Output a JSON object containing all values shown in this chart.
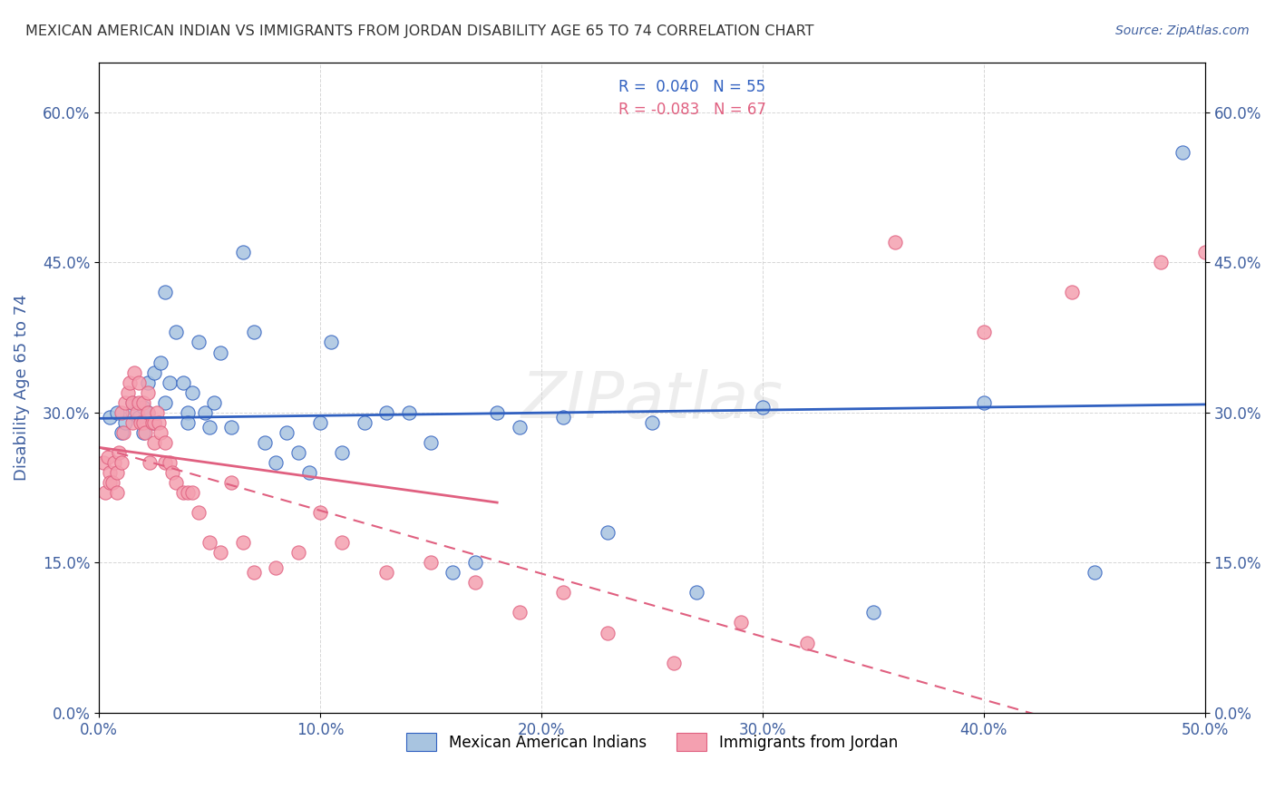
{
  "title": "MEXICAN AMERICAN INDIAN VS IMMIGRANTS FROM JORDAN DISABILITY AGE 65 TO 74 CORRELATION CHART",
  "source": "Source: ZipAtlas.com",
  "xlabel_bottom": "",
  "ylabel": "Disability Age 65 to 74",
  "xlim": [
    0.0,
    0.5
  ],
  "ylim": [
    0.0,
    0.65
  ],
  "xticks": [
    0.0,
    0.1,
    0.2,
    0.3,
    0.4,
    0.5
  ],
  "yticks": [
    0.0,
    0.15,
    0.3,
    0.45,
    0.6
  ],
  "xticklabels": [
    "0.0%",
    "10.0%",
    "20.0%",
    "30.0%",
    "40.0%",
    "50.0%"
  ],
  "yticklabels": [
    "0.0%",
    "15.0%",
    "30.0%",
    "45.0%",
    "60.0%"
  ],
  "blue_color": "#a8c4e0",
  "pink_color": "#f4a0b0",
  "blue_line_color": "#3060c0",
  "pink_line_color": "#e06080",
  "legend_blue_label": "Mexican American Indians",
  "legend_pink_label": "Immigrants from Jordan",
  "R_blue": 0.04,
  "N_blue": 55,
  "R_pink": -0.083,
  "N_pink": 67,
  "watermark": "ZIPatlas",
  "blue_scatter_x": [
    0.005,
    0.008,
    0.01,
    0.012,
    0.015,
    0.015,
    0.018,
    0.02,
    0.02,
    0.022,
    0.022,
    0.025,
    0.025,
    0.028,
    0.03,
    0.03,
    0.032,
    0.035,
    0.038,
    0.04,
    0.04,
    0.042,
    0.045,
    0.048,
    0.05,
    0.052,
    0.055,
    0.06,
    0.065,
    0.07,
    0.075,
    0.08,
    0.085,
    0.09,
    0.095,
    0.1,
    0.105,
    0.11,
    0.12,
    0.13,
    0.14,
    0.15,
    0.16,
    0.17,
    0.18,
    0.19,
    0.21,
    0.23,
    0.25,
    0.27,
    0.3,
    0.35,
    0.4,
    0.45,
    0.49
  ],
  "blue_scatter_y": [
    0.295,
    0.3,
    0.28,
    0.29,
    0.3,
    0.31,
    0.295,
    0.305,
    0.28,
    0.33,
    0.3,
    0.34,
    0.29,
    0.35,
    0.31,
    0.42,
    0.33,
    0.38,
    0.33,
    0.3,
    0.29,
    0.32,
    0.37,
    0.3,
    0.285,
    0.31,
    0.36,
    0.285,
    0.46,
    0.38,
    0.27,
    0.25,
    0.28,
    0.26,
    0.24,
    0.29,
    0.37,
    0.26,
    0.29,
    0.3,
    0.3,
    0.27,
    0.14,
    0.15,
    0.3,
    0.285,
    0.295,
    0.18,
    0.29,
    0.12,
    0.305,
    0.1,
    0.31,
    0.14,
    0.56
  ],
  "pink_scatter_x": [
    0.002,
    0.003,
    0.004,
    0.005,
    0.005,
    0.006,
    0.007,
    0.008,
    0.008,
    0.009,
    0.01,
    0.01,
    0.011,
    0.012,
    0.013,
    0.014,
    0.015,
    0.015,
    0.016,
    0.017,
    0.018,
    0.018,
    0.019,
    0.02,
    0.02,
    0.021,
    0.022,
    0.022,
    0.023,
    0.024,
    0.025,
    0.025,
    0.026,
    0.027,
    0.028,
    0.03,
    0.03,
    0.032,
    0.033,
    0.035,
    0.038,
    0.04,
    0.042,
    0.045,
    0.05,
    0.055,
    0.06,
    0.065,
    0.07,
    0.08,
    0.09,
    0.1,
    0.11,
    0.13,
    0.15,
    0.17,
    0.19,
    0.21,
    0.23,
    0.26,
    0.29,
    0.32,
    0.36,
    0.4,
    0.44,
    0.48,
    0.5
  ],
  "pink_scatter_y": [
    0.25,
    0.22,
    0.255,
    0.24,
    0.23,
    0.23,
    0.25,
    0.24,
    0.22,
    0.26,
    0.25,
    0.3,
    0.28,
    0.31,
    0.32,
    0.33,
    0.29,
    0.31,
    0.34,
    0.3,
    0.31,
    0.33,
    0.29,
    0.29,
    0.31,
    0.28,
    0.3,
    0.32,
    0.25,
    0.29,
    0.27,
    0.29,
    0.3,
    0.29,
    0.28,
    0.27,
    0.25,
    0.25,
    0.24,
    0.23,
    0.22,
    0.22,
    0.22,
    0.2,
    0.17,
    0.16,
    0.23,
    0.17,
    0.14,
    0.145,
    0.16,
    0.2,
    0.17,
    0.14,
    0.15,
    0.13,
    0.1,
    0.12,
    0.08,
    0.05,
    0.09,
    0.07,
    0.47,
    0.38,
    0.42,
    0.45,
    0.46
  ],
  "background_color": "#ffffff",
  "grid_color": "#cccccc",
  "title_color": "#333333",
  "axis_label_color": "#4060a0",
  "tick_label_color": "#4060a0"
}
